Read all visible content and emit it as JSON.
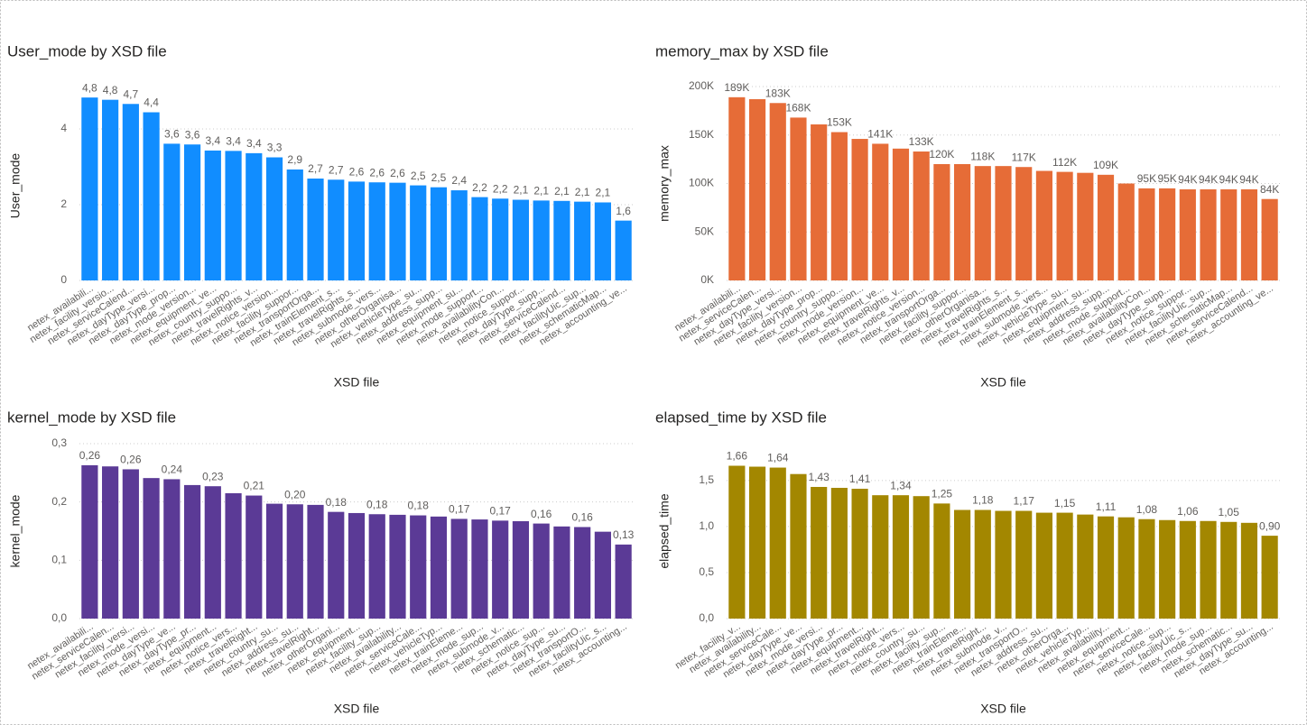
{
  "chart_data": [
    {
      "type": "bar",
      "title": "User_mode by XSD file",
      "x_label": "XSD file",
      "y_label": "User_mode",
      "color": "#118DFF",
      "grid": true,
      "categories": [
        "netex_availabili...",
        "netex_facility_versio...",
        "netex_serviceCalend...",
        "netex_dayType_versi...",
        "netex_dayType_prop...",
        "netex_mode_version...",
        "netex_equipment_ve...",
        "netex_country_suppo...",
        "netex_travelRights_v...",
        "netex_notice_version...",
        "netex_facility_suppor...",
        "netex_transportOrga...",
        "netex_trainElement_s...",
        "netex_travelRights_s...",
        "netex_submode_vers...",
        "netex_otherOrganisa...",
        "netex_vehicleType_su...",
        "netex_address_supp...",
        "netex_equipment_su...",
        "netex_mode_support...",
        "netex_availabilityCon...",
        "netex_notice_suppor...",
        "netex_dayType_supp...",
        "netex_serviceCalend...",
        "netex_facilityUic_sup...",
        "netex_schematicMap...",
        "netex_accounting_ve..."
      ],
      "values": [
        4.83,
        4.77,
        4.66,
        4.44,
        3.61,
        3.59,
        3.43,
        3.42,
        3.36,
        3.25,
        2.93,
        2.69,
        2.66,
        2.61,
        2.59,
        2.58,
        2.51,
        2.46,
        2.38,
        2.2,
        2.16,
        2.13,
        2.11,
        2.1,
        2.08,
        2.06,
        1.58
      ],
      "value_labels": [
        "4,8",
        "4,8",
        "4,7",
        "4,4",
        "3,6",
        "3,6",
        "3,4",
        "3,4",
        "3,4",
        "3,3",
        "2,9",
        "2,7",
        "2,7",
        "2,6",
        "2,6",
        "2,6",
        "2,5",
        "2,5",
        "2,4",
        "2,2",
        "2,2",
        "2,1",
        "2,1",
        "2,1",
        "2,1",
        "2,1",
        "1,6"
      ],
      "ylim": [
        0,
        5
      ],
      "yticks": [
        0,
        2,
        4
      ]
    },
    {
      "type": "bar",
      "title": "memory_max by XSD file",
      "x_label": "XSD file",
      "y_label": "memory_max",
      "color": "#E66C37",
      "grid": true,
      "categories": [
        "netex_availabili...",
        "netex_serviceCalen...",
        "netex_dayType_versi...",
        "netex_facility_version...",
        "netex_dayType_prop...",
        "netex_country_suppo...",
        "netex_mode_version...",
        "netex_equipment_ve...",
        "netex_travelRights_v...",
        "netex_notice_version...",
        "netex_transportOrga...",
        "netex_facility_suppor...",
        "netex_otherOrganisa...",
        "netex_travelRights_s...",
        "netex_trainElement_s...",
        "netex_submode_vers...",
        "netex_vehicleType_su...",
        "netex_equipment_su...",
        "netex_address_supp...",
        "netex_mode_support...",
        "netex_availabilityCon...",
        "netex_dayType_supp...",
        "netex_notice_suppor...",
        "netex_facilityUic_sup...",
        "netex_schematicMap...",
        "netex_serviceCalend...",
        "netex_accounting_ve..."
      ],
      "values": [
        189000,
        187000,
        183000,
        168000,
        161000,
        153000,
        146000,
        141000,
        136000,
        133000,
        120000,
        120000,
        118000,
        118000,
        117000,
        113000,
        112000,
        111000,
        109000,
        100000,
        95000,
        95000,
        94000,
        94000,
        94000,
        94000,
        84000
      ],
      "value_labels": [
        "189K",
        null,
        "183K",
        "168K",
        null,
        "153K",
        null,
        "141K",
        null,
        "133K",
        "120K",
        null,
        "118K",
        null,
        "117K",
        null,
        "112K",
        null,
        "109K",
        null,
        "95K",
        "95K",
        "94K",
        "94K",
        "94K",
        "94K",
        "84K"
      ],
      "ylim": [
        0,
        200000
      ],
      "yticks": [
        {
          "value": 0,
          "label": "0K"
        },
        {
          "value": 50000,
          "label": "50K"
        },
        {
          "value": 100000,
          "label": "100K"
        },
        {
          "value": 150000,
          "label": "150K"
        },
        {
          "value": 200000,
          "label": "200K"
        }
      ]
    },
    {
      "type": "bar",
      "title": "kernel_mode by XSD file",
      "x_label": "XSD file",
      "y_label": "kernel_mode",
      "color": "#5B3A96",
      "grid": true,
      "categories": [
        "netex_availabili...",
        "netex_serviceCalen...",
        "netex_facility_versi...",
        "netex_mode_versi...",
        "netex_dayType_ve...",
        "netex_dayType_pr...",
        "netex_equipment...",
        "netex_notice_vers...",
        "netex_travelRight...",
        "netex_country_su...",
        "netex_address_su...",
        "netex_travelRight...",
        "netex_otherOrgani...",
        "netex_equipment...",
        "netex_facility_sup...",
        "netex_availability...",
        "netex_serviceCale...",
        "netex_vehicleTyp...",
        "netex_trainEleme...",
        "netex_mode_sup...",
        "netex_submode_v...",
        "netex_schematic...",
        "netex_notice_sup...",
        "netex_dayType_su...",
        "netex_transportO...",
        "netex_facilityUic_s...",
        "netex_accounting..."
      ],
      "values": [
        0.263,
        0.261,
        0.256,
        0.241,
        0.239,
        0.229,
        0.227,
        0.215,
        0.211,
        0.197,
        0.196,
        0.195,
        0.183,
        0.181,
        0.179,
        0.178,
        0.177,
        0.175,
        0.171,
        0.17,
        0.168,
        0.167,
        0.163,
        0.158,
        0.157,
        0.149,
        0.127
      ],
      "value_labels": [
        "0,26",
        null,
        "0,26",
        null,
        "0,24",
        null,
        "0,23",
        null,
        "0,21",
        null,
        "0,20",
        null,
        "0,18",
        null,
        "0,18",
        null,
        "0,18",
        null,
        "0,17",
        null,
        "0,17",
        null,
        "0,16",
        null,
        "0,16",
        null,
        "0,13"
      ],
      "ylim": [
        0,
        0.3
      ],
      "yticks": [
        {
          "value": 0,
          "label": "0,0"
        },
        {
          "value": 0.1,
          "label": "0,1"
        },
        {
          "value": 0.2,
          "label": "0,2"
        },
        {
          "value": 0.3,
          "label": "0,3"
        }
      ]
    },
    {
      "type": "bar",
      "title": "elapsed_time by XSD file",
      "x_label": "XSD file",
      "y_label": "elapsed_time",
      "color": "#A38700",
      "grid": true,
      "categories": [
        "netex_facility_v...",
        "netex_availability...",
        "netex_serviceCale...",
        "netex_dayType_ve...",
        "netex_mode_versi...",
        "netex_dayType_pr...",
        "netex_equipment...",
        "netex_travelRight...",
        "netex_notice_vers...",
        "netex_country_su...",
        "netex_facility_sup...",
        "netex_trainEleme...",
        "netex_travelRight...",
        "netex_submode_v...",
        "netex_transportO...",
        "netex_address_su...",
        "netex_otherOrga...",
        "netex_vehicleTyp...",
        "netex_availability...",
        "netex_equipment...",
        "netex_serviceCale...",
        "netex_notice_sup...",
        "netex_facilityUic_s...",
        "netex_mode_sup...",
        "netex_schematic...",
        "netex_dayType_su...",
        "netex_accounting..."
      ],
      "values": [
        1.66,
        1.65,
        1.64,
        1.57,
        1.43,
        1.42,
        1.41,
        1.34,
        1.34,
        1.33,
        1.25,
        1.18,
        1.18,
        1.17,
        1.17,
        1.15,
        1.15,
        1.13,
        1.11,
        1.1,
        1.08,
        1.07,
        1.06,
        1.06,
        1.05,
        1.04,
        0.9
      ],
      "value_labels": [
        "1,66",
        null,
        "1,64",
        null,
        "1,43",
        null,
        "1,41",
        null,
        "1,34",
        null,
        "1,25",
        null,
        "1,18",
        null,
        "1,17",
        null,
        "1,15",
        null,
        "1,11",
        null,
        "1,08",
        null,
        "1,06",
        null,
        "1,05",
        null,
        "0,90"
      ],
      "ylim": [
        0,
        1.9
      ],
      "yticks": [
        {
          "value": 0,
          "label": "0,0"
        },
        {
          "value": 0.5,
          "label": "0,5"
        },
        {
          "value": 1,
          "label": "1,0"
        },
        {
          "value": 1.5,
          "label": "1,5"
        }
      ]
    }
  ]
}
